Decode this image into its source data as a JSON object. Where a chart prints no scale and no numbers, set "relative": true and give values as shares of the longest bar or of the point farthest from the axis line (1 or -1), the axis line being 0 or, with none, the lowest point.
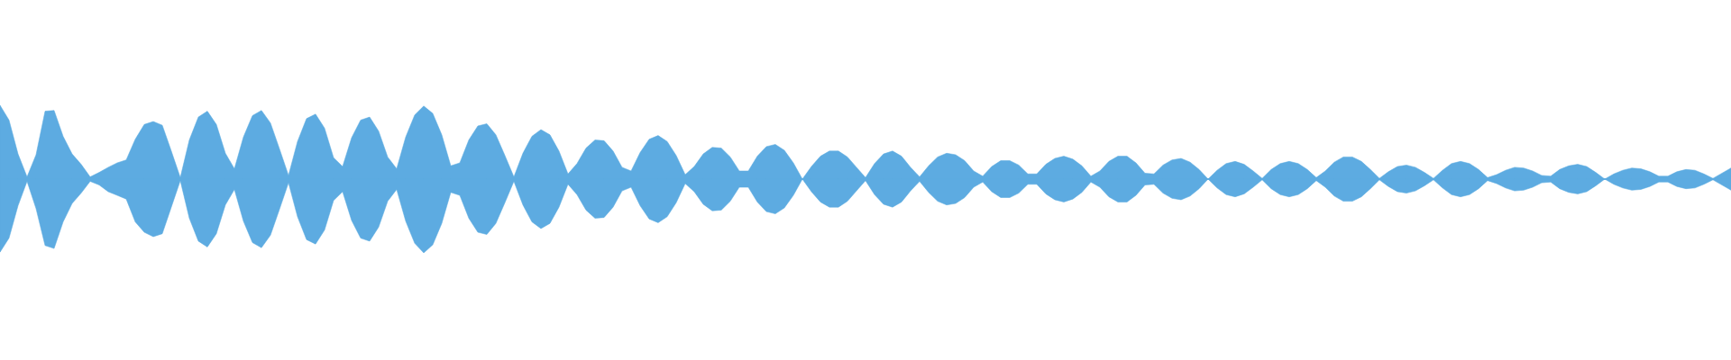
{
  "chart_data": {
    "type": "area",
    "relative": true,
    "tick_labels": false,
    "ref_lines": [
      {
        "axis": "y",
        "value": 0,
        "color": "#5dabe1"
      }
    ],
    "categories": [
      null,
      null,
      null,
      null,
      null,
      null,
      null,
      null,
      null,
      null,
      null,
      null,
      null,
      null,
      null,
      null,
      null,
      null,
      null,
      null,
      null,
      null,
      null,
      null,
      null,
      null,
      null,
      null,
      null,
      null,
      null,
      null,
      null,
      null,
      null,
      null,
      null,
      null,
      null,
      null,
      null,
      null,
      null,
      null,
      null,
      null,
      null,
      null,
      null,
      null,
      null,
      null,
      null,
      null,
      null,
      null,
      null,
      null,
      null,
      null,
      null,
      null,
      null,
      null,
      null,
      null,
      null,
      null,
      null,
      null,
      null,
      null,
      null,
      null,
      null,
      null,
      null,
      null,
      null,
      null,
      null,
      null,
      null,
      null,
      null,
      null,
      null,
      null,
      null,
      null,
      null,
      null,
      null,
      null,
      null,
      null,
      null,
      null,
      null,
      null,
      null,
      null,
      null,
      null,
      null,
      null,
      null,
      null,
      null,
      null,
      null,
      null,
      null,
      null,
      null,
      null,
      null,
      null,
      null,
      null,
      null,
      null,
      null,
      null,
      null,
      null,
      null,
      null,
      null,
      null,
      null,
      null,
      null,
      null,
      null,
      null,
      null,
      null,
      null,
      null,
      null,
      null,
      null,
      null,
      null,
      null,
      null,
      null,
      null,
      null,
      null,
      null,
      null,
      null,
      null,
      null,
      null,
      null,
      null,
      null,
      null,
      null,
      null,
      null,
      null,
      null,
      null,
      null,
      null,
      null,
      null,
      null,
      null,
      null,
      null,
      null,
      null,
      null,
      null,
      null,
      null,
      null,
      null,
      null,
      null,
      null,
      null,
      null,
      null,
      null,
      null,
      null,
      null
    ],
    "series": [
      {
        "color": "#5dabe1",
        "values": [
          1.0,
          0.8,
          0.34,
          0.03,
          0.33,
          0.92,
          0.93,
          0.58,
          0.34,
          0.2,
          0.03,
          0.09,
          0.16,
          0.22,
          0.26,
          0.54,
          0.74,
          0.78,
          0.73,
          0.38,
          0.02,
          0.53,
          0.84,
          0.92,
          0.74,
          0.35,
          0.14,
          0.57,
          0.86,
          0.93,
          0.76,
          0.41,
          0.05,
          0.51,
          0.82,
          0.88,
          0.69,
          0.29,
          0.17,
          0.56,
          0.8,
          0.84,
          0.65,
          0.3,
          0.14,
          0.57,
          0.87,
          0.99,
          0.89,
          0.6,
          0.18,
          0.22,
          0.53,
          0.72,
          0.75,
          0.6,
          0.32,
          0.03,
          0.35,
          0.58,
          0.67,
          0.6,
          0.38,
          0.07,
          0.21,
          0.42,
          0.53,
          0.52,
          0.38,
          0.16,
          0.11,
          0.36,
          0.54,
          0.59,
          0.51,
          0.32,
          0.06,
          0.17,
          0.34,
          0.43,
          0.42,
          0.3,
          0.11,
          0.11,
          0.31,
          0.44,
          0.47,
          0.39,
          0.22,
          0.0,
          0.17,
          0.31,
          0.38,
          0.38,
          0.3,
          0.16,
          0.02,
          0.21,
          0.34,
          0.38,
          0.31,
          0.16,
          0.03,
          0.18,
          0.3,
          0.35,
          0.33,
          0.25,
          0.11,
          0.04,
          0.17,
          0.25,
          0.25,
          0.19,
          0.07,
          0.07,
          0.2,
          0.28,
          0.31,
          0.27,
          0.18,
          0.04,
          0.11,
          0.24,
          0.31,
          0.31,
          0.22,
          0.08,
          0.07,
          0.19,
          0.26,
          0.28,
          0.23,
          0.13,
          0.0,
          0.12,
          0.21,
          0.24,
          0.2,
          0.11,
          0.01,
          0.13,
          0.21,
          0.24,
          0.21,
          0.13,
          0.02,
          0.11,
          0.23,
          0.3,
          0.3,
          0.24,
          0.13,
          0.01,
          0.1,
          0.17,
          0.19,
          0.16,
          0.09,
          0.01,
          0.12,
          0.21,
          0.24,
          0.21,
          0.13,
          0.02,
          0.06,
          0.12,
          0.16,
          0.15,
          0.11,
          0.05,
          0.04,
          0.13,
          0.18,
          0.2,
          0.17,
          0.09,
          0.0,
          0.07,
          0.12,
          0.15,
          0.14,
          0.1,
          0.04,
          0.04,
          0.1,
          0.13,
          0.12,
          0.07,
          0.01,
          0.08,
          0.15
        ]
      },
      {
        "color": "#5dabe1",
        "values": [
          -0.99,
          -0.8,
          -0.36,
          -0.03,
          -0.4,
          -0.9,
          -0.94,
          -0.58,
          -0.33,
          -0.19,
          -0.03,
          -0.08,
          -0.17,
          -0.22,
          -0.27,
          -0.58,
          -0.72,
          -0.78,
          -0.74,
          -0.38,
          -0.02,
          -0.53,
          -0.84,
          -0.92,
          -0.74,
          -0.35,
          -0.14,
          -0.57,
          -0.86,
          -0.93,
          -0.76,
          -0.41,
          -0.05,
          -0.51,
          -0.82,
          -0.88,
          -0.69,
          -0.29,
          -0.17,
          -0.56,
          -0.8,
          -0.84,
          -0.65,
          -0.3,
          -0.14,
          -0.57,
          -0.87,
          -1.0,
          -0.89,
          -0.6,
          -0.18,
          -0.22,
          -0.53,
          -0.72,
          -0.75,
          -0.6,
          -0.32,
          -0.03,
          -0.35,
          -0.58,
          -0.67,
          -0.6,
          -0.38,
          -0.07,
          -0.21,
          -0.42,
          -0.53,
          -0.52,
          -0.38,
          -0.16,
          -0.11,
          -0.36,
          -0.54,
          -0.59,
          -0.51,
          -0.32,
          -0.06,
          -0.17,
          -0.34,
          -0.43,
          -0.42,
          -0.3,
          -0.11,
          -0.11,
          -0.31,
          -0.44,
          -0.47,
          -0.39,
          -0.22,
          0.0,
          -0.17,
          -0.31,
          -0.38,
          -0.38,
          -0.3,
          -0.16,
          -0.02,
          -0.21,
          -0.34,
          -0.38,
          -0.31,
          -0.16,
          -0.03,
          -0.18,
          -0.3,
          -0.35,
          -0.33,
          -0.25,
          -0.11,
          -0.04,
          -0.17,
          -0.25,
          -0.25,
          -0.19,
          -0.07,
          -0.07,
          -0.2,
          -0.28,
          -0.31,
          -0.27,
          -0.18,
          -0.04,
          -0.11,
          -0.24,
          -0.31,
          -0.31,
          -0.22,
          -0.08,
          -0.07,
          -0.19,
          -0.26,
          -0.28,
          -0.23,
          -0.13,
          0.0,
          -0.12,
          -0.21,
          -0.24,
          -0.2,
          -0.11,
          -0.01,
          -0.13,
          -0.21,
          -0.24,
          -0.21,
          -0.13,
          -0.02,
          -0.11,
          -0.23,
          -0.3,
          -0.3,
          -0.24,
          -0.13,
          -0.01,
          -0.1,
          -0.17,
          -0.19,
          -0.16,
          -0.09,
          -0.01,
          -0.12,
          -0.21,
          -0.24,
          -0.21,
          -0.13,
          -0.02,
          -0.06,
          -0.12,
          -0.16,
          -0.15,
          -0.11,
          -0.05,
          -0.04,
          -0.13,
          -0.18,
          -0.2,
          -0.17,
          -0.09,
          0.0,
          -0.07,
          -0.12,
          -0.15,
          -0.14,
          -0.1,
          -0.04,
          -0.04,
          -0.1,
          -0.13,
          -0.12,
          -0.07,
          -0.01,
          -0.08,
          -0.15
        ]
      }
    ]
  }
}
